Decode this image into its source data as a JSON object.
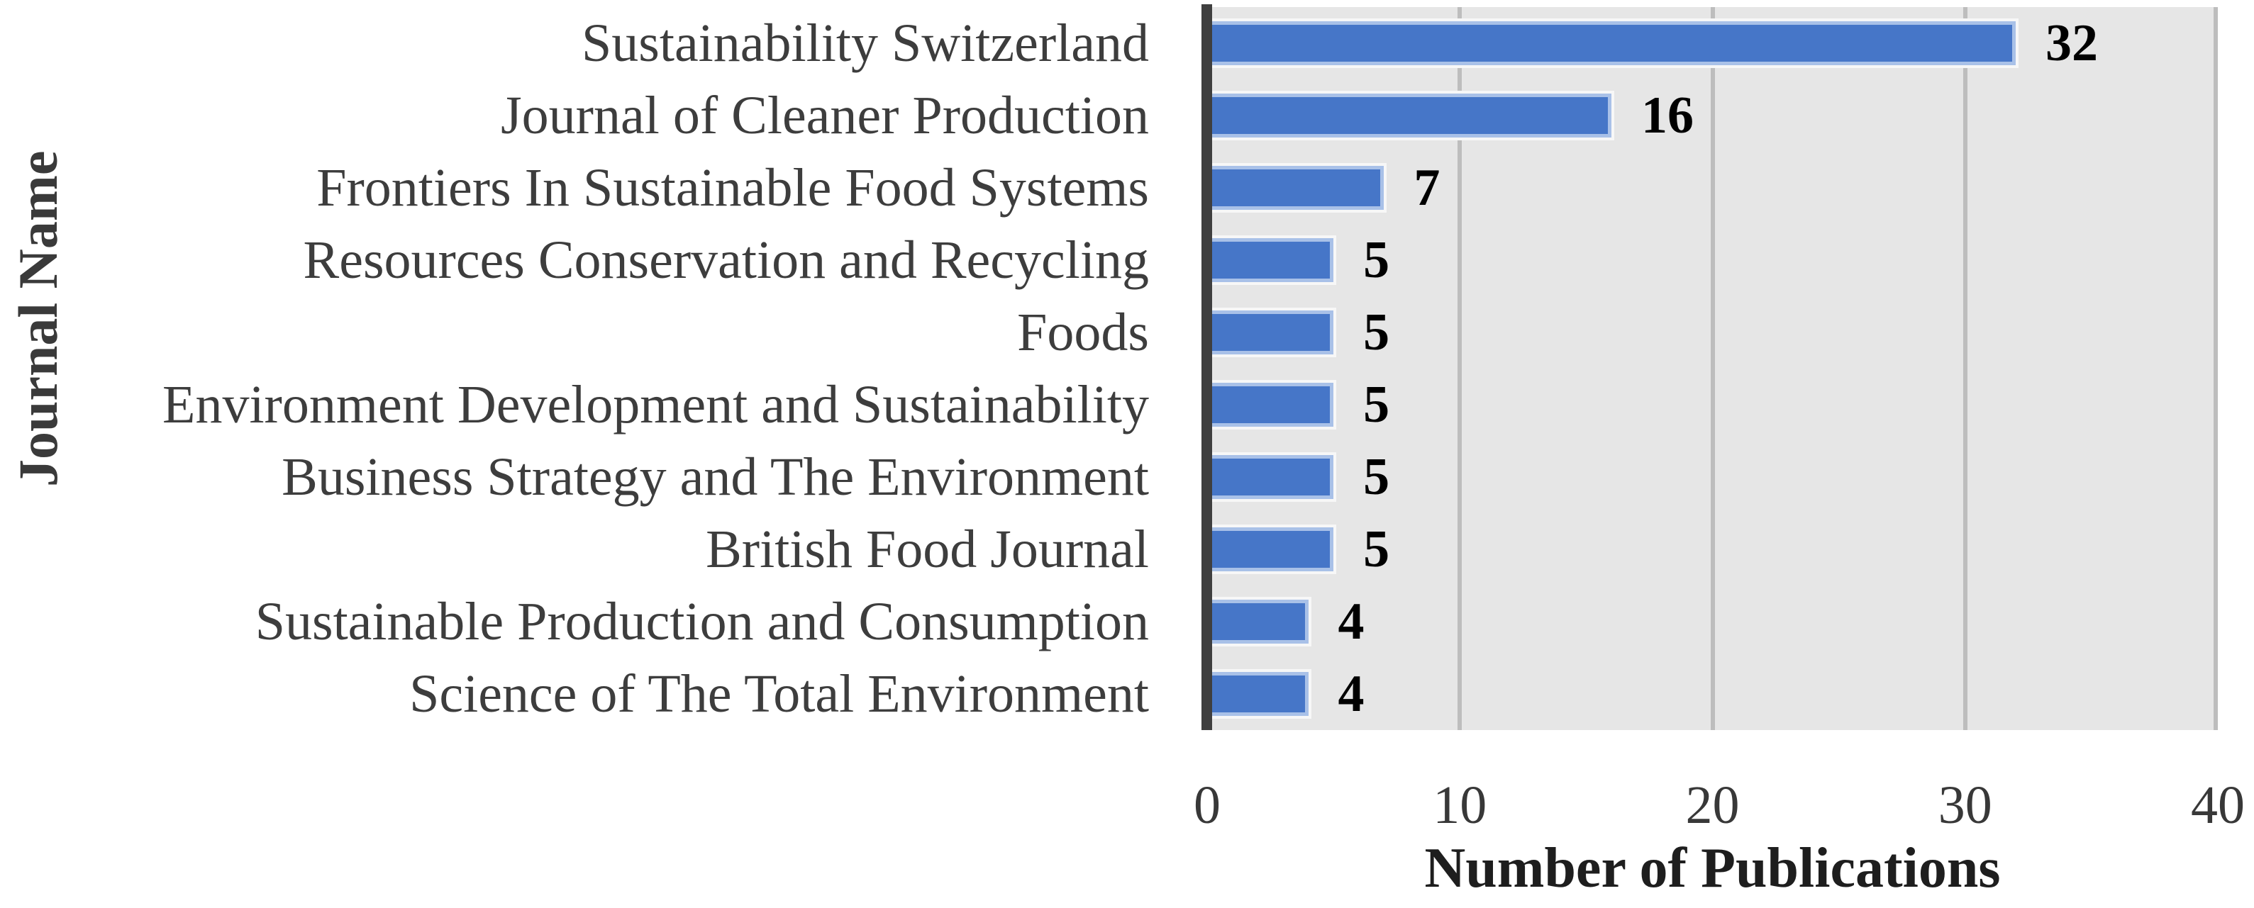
{
  "chart_data": {
    "type": "bar",
    "orientation": "horizontal",
    "categories": [
      "Sustainability Switzerland",
      "Journal of Cleaner Production",
      "Frontiers In Sustainable Food Systems",
      "Resources Conservation and Recycling",
      "Foods",
      "Environment Development and Sustainability",
      "Business Strategy and The Environment",
      "British Food Journal",
      "Sustainable Production and Consumption",
      "Science of The Total Environment"
    ],
    "values": [
      32,
      16,
      7,
      5,
      5,
      5,
      5,
      5,
      4,
      4
    ],
    "xlabel": "Number of Publications",
    "ylabel": "Journal Name",
    "xlim": [
      0,
      40
    ],
    "xticks": [
      0,
      10,
      20,
      30,
      40
    ],
    "grid": "vertical-gridlines-on",
    "legend": "none",
    "colors": {
      "bar_fill": "#4676C8",
      "bar_border": "#A9C1E8",
      "bar_outer_outline": "#F7F7F7",
      "plot_background": "#E6E6E6",
      "gridline": "#BDBDBD",
      "axis_spine": "#3F3F3F",
      "category_text": "#3D3D3D",
      "tick_text": "#383838",
      "axis_title_text": "#1E1E1E"
    }
  }
}
